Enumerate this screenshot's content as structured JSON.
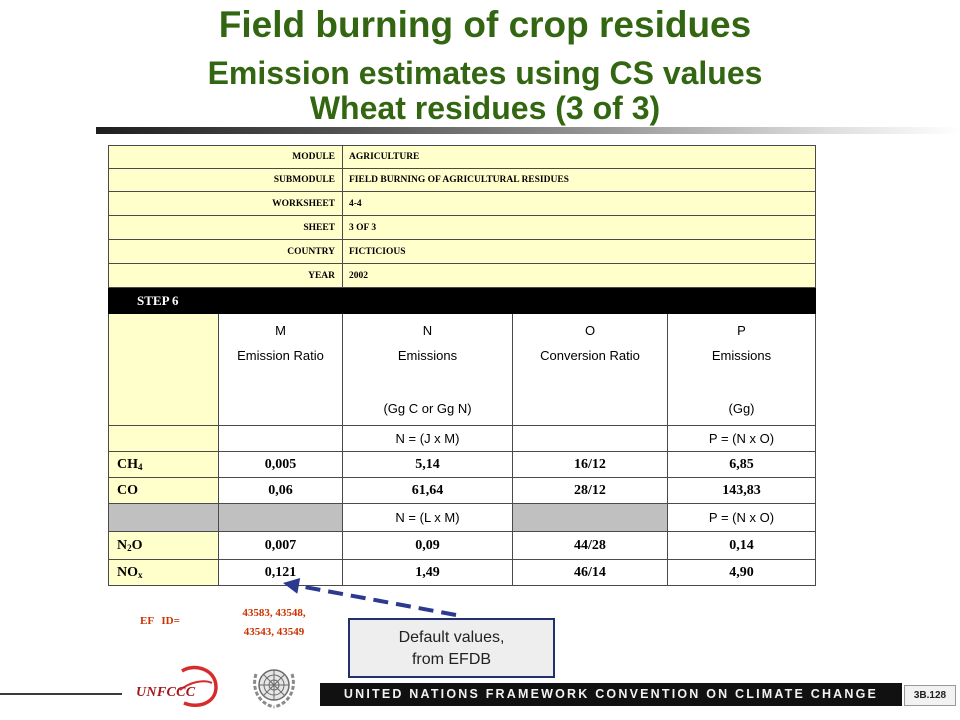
{
  "title": {
    "line1": "Field burning of crop residues",
    "line2": "Emission estimates using CS values",
    "line3": "Wheat residues (3 of 3)"
  },
  "worksheet_info": [
    {
      "label": "MODULE",
      "value": "AGRICULTURE"
    },
    {
      "label": "SUBMODULE",
      "value": "FIELD BURNING OF AGRICULTURAL RESIDUES"
    },
    {
      "label": "WORKSHEET",
      "value": "4-4"
    },
    {
      "label": "SHEET",
      "value": "3 OF 3"
    },
    {
      "label": "COUNTRY",
      "value": "FICTICIOUS"
    },
    {
      "label": "YEAR",
      "value": "2002"
    }
  ],
  "step": "STEP 6",
  "columns": [
    {
      "letter": "M",
      "name": "Emission Ratio"
    },
    {
      "letter": "N",
      "name": "Emissions",
      "unit": "(Gg C or Gg N)"
    },
    {
      "letter": "O",
      "name": "Conversion Ratio"
    },
    {
      "letter": "P",
      "name": "Emissions",
      "unit": "(Gg)"
    }
  ],
  "formula_rows": [
    {
      "N": "N = (J x M)",
      "P": "P = (N x O)"
    },
    {
      "N": "N = (L x M)",
      "P": "P = (N x O)"
    }
  ],
  "gases": [
    {
      "name": {
        "base": "CH",
        "sub": "4"
      },
      "M": "0,005",
      "N": "5,14",
      "O": "16/12",
      "P": "6,85"
    },
    {
      "name": {
        "base": "CO"
      },
      "M": "0,06",
      "N": "61,64",
      "O": "28/12",
      "P": "143,83"
    },
    {
      "name": {
        "base": "N",
        "sub": "2",
        "tail": "O"
      },
      "M": "0,007",
      "N": "0,09",
      "O": "44/28",
      "P": "0,14"
    },
    {
      "name": {
        "base": "NO",
        "sub": "x"
      },
      "M": "0,121",
      "N": "1,49",
      "O": "46/14",
      "P": "4,90"
    }
  ],
  "ef_id": {
    "label": "EF ID=",
    "ids_line1": "43583, 43548,",
    "ids_line2": "43543, 43549"
  },
  "callout": {
    "line1": "Default values,",
    "line2": "from EFDB"
  },
  "footer": {
    "logo_text": "UNFCCC",
    "banner": "UNITED NATIONS FRAMEWORK CONVENTION ON CLIMATE CHANGE",
    "slide_number": "3B.128"
  },
  "colors": {
    "title": "#336611",
    "worksheet_yellow": "#FFFFCC",
    "shaded_cell": "#C0C0C0",
    "step_bar": "#000000",
    "ef_id_text": "#CC3300",
    "callout_arrow": "#2B3990"
  },
  "icons": {
    "unfccc_logo": "unfccc-logo",
    "un_emblem": "un-emblem-icon",
    "callout_arrow": "dashed-arrow-icon"
  }
}
